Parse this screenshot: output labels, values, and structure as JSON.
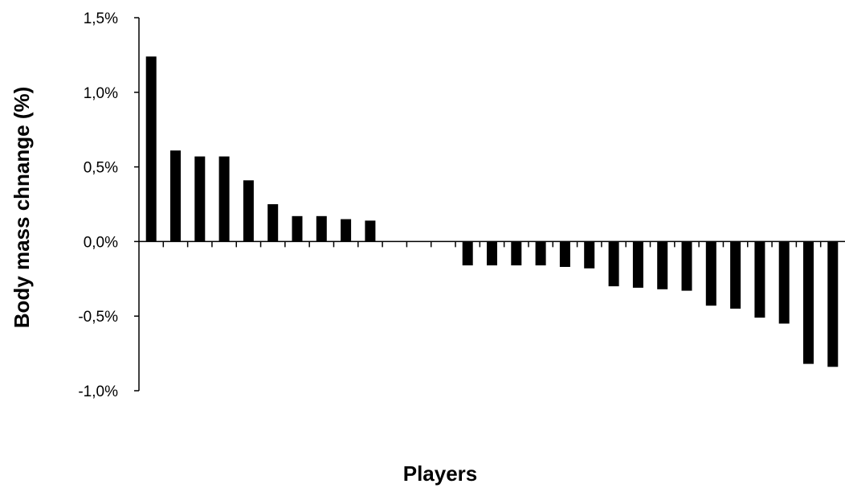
{
  "chart_data": {
    "type": "bar",
    "xlabel": "Players",
    "ylabel": "Body mass chnange (%)",
    "ylim": [
      -1.0,
      1.5
    ],
    "yticks": [
      1.5,
      1.0,
      0.5,
      0.0,
      -0.5,
      -1.0
    ],
    "ytick_labels": [
      "1,5%",
      "1,0%",
      "0,5%",
      "0,0%",
      "-0,5%",
      "-1,0%"
    ],
    "grid": false,
    "legend": "none",
    "bar_color": "#000000",
    "values": [
      1.24,
      0.61,
      0.57,
      0.57,
      0.41,
      0.25,
      0.17,
      0.17,
      0.15,
      0.14,
      0.0,
      0.0,
      0.0,
      -0.16,
      -0.16,
      -0.16,
      -0.16,
      -0.17,
      -0.18,
      -0.3,
      -0.31,
      -0.32,
      -0.33,
      -0.43,
      -0.45,
      -0.51,
      -0.55,
      -0.82,
      -0.84
    ]
  }
}
